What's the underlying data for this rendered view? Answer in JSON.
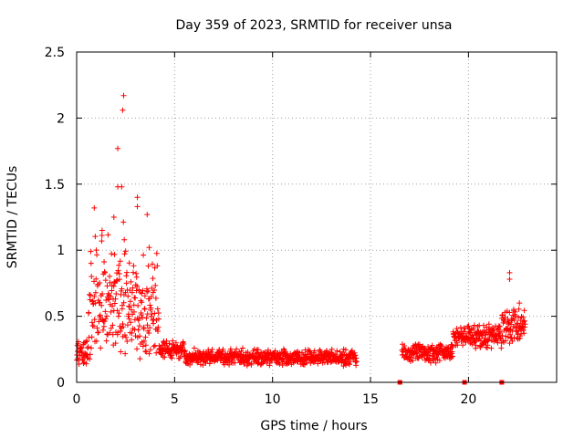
{
  "chart_data": {
    "type": "scatter",
    "title": "Day 359 of 2023, SRMTID for receiver unsa",
    "xlabel": "GPS time / hours",
    "ylabel": "SRMTID / TECUs",
    "xlim": [
      0,
      24.5
    ],
    "ylim": [
      0,
      2.5
    ],
    "x_ticks": [
      0,
      5,
      10,
      15,
      20
    ],
    "x_tick_labels": [
      "0",
      "5",
      "10",
      "15",
      "20"
    ],
    "y_ticks": [
      0,
      0.5,
      1,
      1.5,
      2,
      2.5
    ],
    "y_tick_labels": [
      "0",
      "0.5",
      "1",
      "1.5",
      "2",
      "2.5"
    ],
    "grid": true,
    "marker": "plus",
    "series_color": "#ff0000",
    "zero_markers_x": [
      16.5,
      19.8,
      21.7
    ],
    "segments": [
      {
        "x_start": 0.0,
        "x_end": 0.6,
        "base": 0.22,
        "spread": 0.1,
        "bursts": 0.0
      },
      {
        "x_start": 0.6,
        "x_end": 2.6,
        "base": 0.5,
        "spread": 0.4,
        "bursts": 0.3
      },
      {
        "x_start": 2.6,
        "x_end": 4.2,
        "base": 0.45,
        "spread": 0.35,
        "bursts": 0.2
      },
      {
        "x_start": 4.2,
        "x_end": 5.5,
        "base": 0.25,
        "spread": 0.08,
        "bursts": 0.0
      },
      {
        "x_start": 5.5,
        "x_end": 14.3,
        "base": 0.19,
        "spread": 0.07,
        "bursts": 0.0
      },
      {
        "x_start": 16.6,
        "x_end": 19.2,
        "base": 0.22,
        "spread": 0.08,
        "bursts": 0.0
      },
      {
        "x_start": 19.2,
        "x_end": 21.7,
        "base": 0.35,
        "spread": 0.1,
        "bursts": 0.0
      },
      {
        "x_start": 21.7,
        "x_end": 22.9,
        "base": 0.42,
        "spread": 0.15,
        "bursts": 0.0
      }
    ],
    "outliers": [
      {
        "x": 2.4,
        "y": 2.17
      },
      {
        "x": 2.35,
        "y": 2.06
      },
      {
        "x": 2.1,
        "y": 1.77
      },
      {
        "x": 2.1,
        "y": 1.48
      },
      {
        "x": 2.3,
        "y": 1.48
      },
      {
        "x": 3.1,
        "y": 1.4
      },
      {
        "x": 3.1,
        "y": 1.33
      },
      {
        "x": 0.9,
        "y": 1.32
      },
      {
        "x": 1.9,
        "y": 1.25
      },
      {
        "x": 3.6,
        "y": 1.27
      },
      {
        "x": 1.3,
        "y": 1.15
      },
      {
        "x": 3.7,
        "y": 1.02
      },
      {
        "x": 22.1,
        "y": 0.83
      },
      {
        "x": 22.1,
        "y": 0.78
      },
      {
        "x": 22.6,
        "y": 0.6
      }
    ]
  }
}
